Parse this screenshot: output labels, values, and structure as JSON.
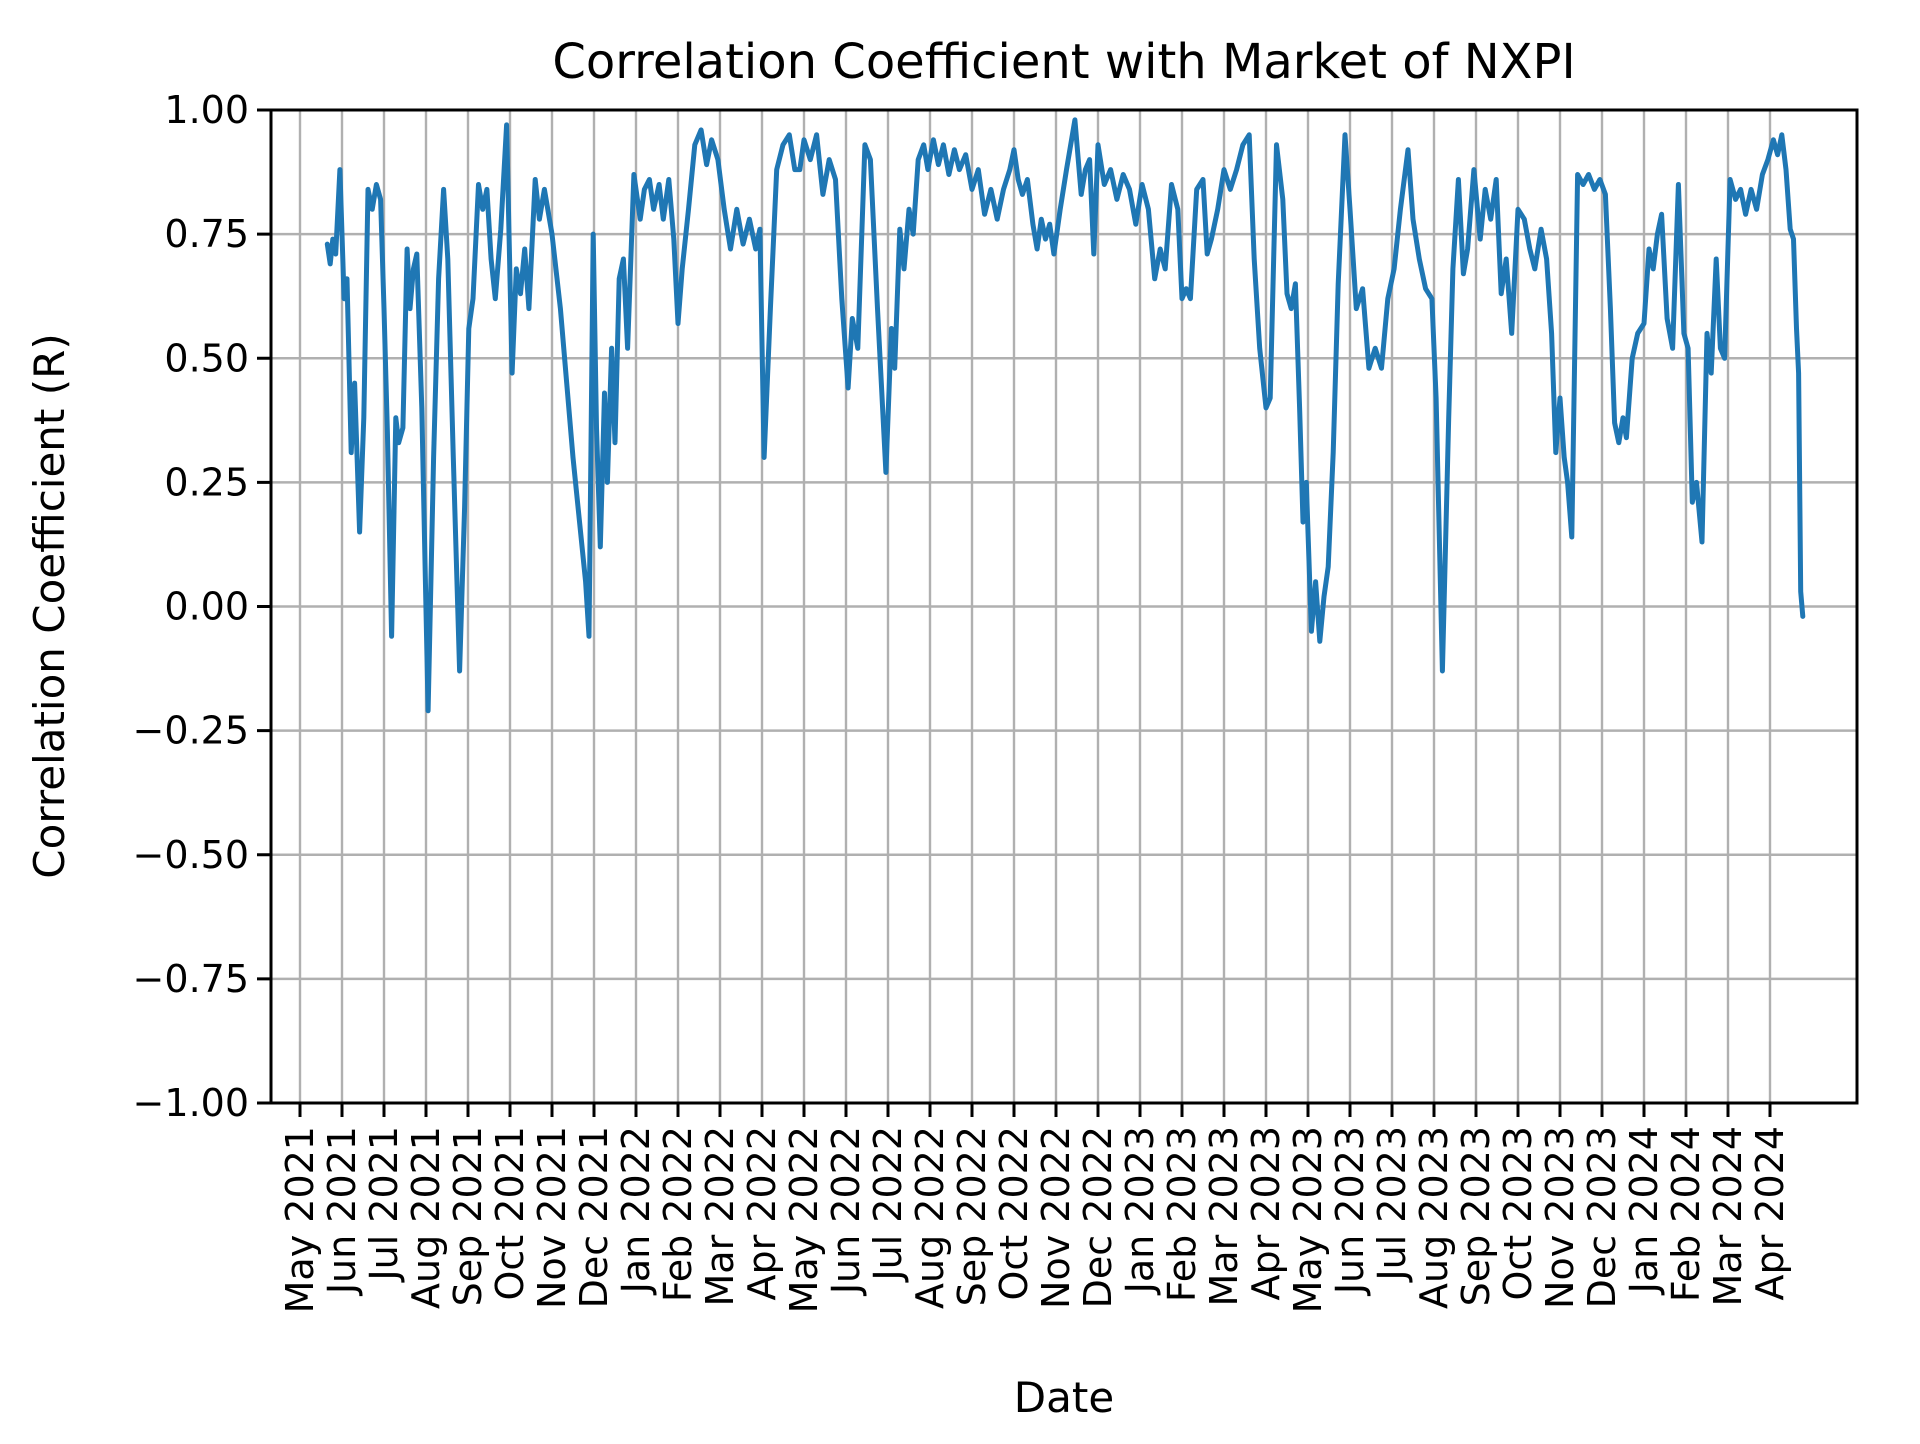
{
  "figure": {
    "title": "Correlation Coefficient with Market of NXPI",
    "xlabel": "Date",
    "ylabel": "Correlation Coefficient (R)"
  },
  "chart_data": {
    "type": "line",
    "title": "Correlation Coefficient with Market of NXPI",
    "xlabel": "Date",
    "ylabel": "Correlation Coefficient (R)",
    "ylim": [
      -1.0,
      1.0
    ],
    "grid": true,
    "legend_position": "none",
    "line_color": "#1f77b4",
    "grid_color": "#b0b0b0",
    "spine_color": "#000000",
    "yticks": {
      "labels": [
        "1.00",
        "0.75",
        "0.50",
        "0.25",
        "0.00",
        "−0.25",
        "−0.50",
        "−0.75",
        "−1.00"
      ],
      "values": [
        1.0,
        0.75,
        0.5,
        0.25,
        0.0,
        -0.25,
        -0.5,
        -0.75,
        -1.0
      ]
    },
    "x_tick_labels": [
      "May 2021",
      "Jun 2021",
      "Jul 2021",
      "Aug 2021",
      "Sep 2021",
      "Oct 2021",
      "Nov 2021",
      "Dec 2021",
      "Jan 2022",
      "Feb 2022",
      "Mar 2022",
      "Apr 2022",
      "May 2022",
      "Jun 2022",
      "Jul 2022",
      "Aug 2022",
      "Sep 2022",
      "Oct 2022",
      "Nov 2022",
      "Dec 2022",
      "Jan 2023",
      "Feb 2023",
      "Mar 2023",
      "Apr 2023",
      "May 2023",
      "Jun 2023",
      "Jul 2023",
      "Aug 2023",
      "Sep 2023",
      "Oct 2023",
      "Nov 2023",
      "Dec 2023",
      "Jan 2024",
      "Feb 2024",
      "Mar 2024",
      "Apr 2024"
    ],
    "x_unit": "months_since_first_tick",
    "series": [
      {
        "name": "correlation",
        "points": [
          [
            0.65,
            0.73
          ],
          [
            0.72,
            0.69
          ],
          [
            0.78,
            0.74
          ],
          [
            0.85,
            0.71
          ],
          [
            0.95,
            0.88
          ],
          [
            1.05,
            0.62
          ],
          [
            1.12,
            0.66
          ],
          [
            1.22,
            0.31
          ],
          [
            1.3,
            0.45
          ],
          [
            1.42,
            0.15
          ],
          [
            1.52,
            0.38
          ],
          [
            1.62,
            0.84
          ],
          [
            1.72,
            0.8
          ],
          [
            1.82,
            0.85
          ],
          [
            1.92,
            0.82
          ],
          [
            2.0,
            0.6
          ],
          [
            2.08,
            0.35
          ],
          [
            2.18,
            -0.06
          ],
          [
            2.28,
            0.38
          ],
          [
            2.35,
            0.33
          ],
          [
            2.45,
            0.36
          ],
          [
            2.55,
            0.72
          ],
          [
            2.62,
            0.6
          ],
          [
            2.7,
            0.68
          ],
          [
            2.78,
            0.71
          ],
          [
            2.9,
            0.4
          ],
          [
            3.05,
            -0.21
          ],
          [
            3.18,
            0.3
          ],
          [
            3.3,
            0.66
          ],
          [
            3.42,
            0.84
          ],
          [
            3.52,
            0.7
          ],
          [
            3.65,
            0.3
          ],
          [
            3.8,
            -0.13
          ],
          [
            3.92,
            0.2
          ],
          [
            4.02,
            0.56
          ],
          [
            4.12,
            0.62
          ],
          [
            4.25,
            0.85
          ],
          [
            4.35,
            0.8
          ],
          [
            4.45,
            0.84
          ],
          [
            4.55,
            0.7
          ],
          [
            4.65,
            0.62
          ],
          [
            4.78,
            0.76
          ],
          [
            4.92,
            0.97
          ],
          [
            5.05,
            0.47
          ],
          [
            5.15,
            0.68
          ],
          [
            5.25,
            0.63
          ],
          [
            5.35,
            0.72
          ],
          [
            5.45,
            0.6
          ],
          [
            5.6,
            0.86
          ],
          [
            5.7,
            0.78
          ],
          [
            5.82,
            0.84
          ],
          [
            6.0,
            0.75
          ],
          [
            6.2,
            0.6
          ],
          [
            6.5,
            0.3
          ],
          [
            6.8,
            0.05
          ],
          [
            6.88,
            -0.06
          ],
          [
            6.98,
            0.75
          ],
          [
            7.06,
            0.36
          ],
          [
            7.15,
            0.12
          ],
          [
            7.25,
            0.43
          ],
          [
            7.32,
            0.25
          ],
          [
            7.42,
            0.52
          ],
          [
            7.5,
            0.33
          ],
          [
            7.6,
            0.66
          ],
          [
            7.7,
            0.7
          ],
          [
            7.8,
            0.52
          ],
          [
            7.95,
            0.87
          ],
          [
            8.1,
            0.78
          ],
          [
            8.2,
            0.84
          ],
          [
            8.32,
            0.86
          ],
          [
            8.42,
            0.8
          ],
          [
            8.55,
            0.85
          ],
          [
            8.65,
            0.78
          ],
          [
            8.78,
            0.86
          ],
          [
            8.9,
            0.74
          ],
          [
            9.0,
            0.57
          ],
          [
            9.1,
            0.68
          ],
          [
            9.25,
            0.8
          ],
          [
            9.4,
            0.93
          ],
          [
            9.55,
            0.96
          ],
          [
            9.68,
            0.89
          ],
          [
            9.8,
            0.94
          ],
          [
            9.95,
            0.9
          ],
          [
            10.1,
            0.8
          ],
          [
            10.25,
            0.72
          ],
          [
            10.4,
            0.8
          ],
          [
            10.55,
            0.73
          ],
          [
            10.7,
            0.78
          ],
          [
            10.85,
            0.72
          ],
          [
            10.95,
            0.76
          ],
          [
            11.05,
            0.3
          ],
          [
            11.2,
            0.6
          ],
          [
            11.35,
            0.88
          ],
          [
            11.5,
            0.93
          ],
          [
            11.65,
            0.95
          ],
          [
            11.78,
            0.88
          ],
          [
            11.9,
            0.88
          ],
          [
            12.0,
            0.94
          ],
          [
            12.15,
            0.9
          ],
          [
            12.3,
            0.95
          ],
          [
            12.45,
            0.83
          ],
          [
            12.6,
            0.9
          ],
          [
            12.75,
            0.86
          ],
          [
            12.9,
            0.62
          ],
          [
            13.05,
            0.44
          ],
          [
            13.15,
            0.58
          ],
          [
            13.28,
            0.52
          ],
          [
            13.45,
            0.93
          ],
          [
            13.58,
            0.9
          ],
          [
            13.75,
            0.6
          ],
          [
            13.95,
            0.27
          ],
          [
            14.08,
            0.56
          ],
          [
            14.16,
            0.48
          ],
          [
            14.28,
            0.76
          ],
          [
            14.38,
            0.68
          ],
          [
            14.5,
            0.8
          ],
          [
            14.6,
            0.75
          ],
          [
            14.72,
            0.9
          ],
          [
            14.85,
            0.93
          ],
          [
            14.95,
            0.88
          ],
          [
            15.08,
            0.94
          ],
          [
            15.2,
            0.89
          ],
          [
            15.32,
            0.93
          ],
          [
            15.45,
            0.87
          ],
          [
            15.58,
            0.92
          ],
          [
            15.7,
            0.88
          ],
          [
            15.85,
            0.91
          ],
          [
            16.0,
            0.84
          ],
          [
            16.15,
            0.88
          ],
          [
            16.3,
            0.79
          ],
          [
            16.45,
            0.84
          ],
          [
            16.6,
            0.78
          ],
          [
            16.75,
            0.84
          ],
          [
            16.9,
            0.88
          ],
          [
            17.0,
            0.92
          ],
          [
            17.1,
            0.86
          ],
          [
            17.2,
            0.83
          ],
          [
            17.32,
            0.86
          ],
          [
            17.45,
            0.77
          ],
          [
            17.55,
            0.72
          ],
          [
            17.65,
            0.78
          ],
          [
            17.75,
            0.74
          ],
          [
            17.85,
            0.77
          ],
          [
            17.95,
            0.71
          ],
          [
            18.1,
            0.8
          ],
          [
            18.25,
            0.88
          ],
          [
            18.45,
            0.98
          ],
          [
            18.6,
            0.83
          ],
          [
            18.7,
            0.88
          ],
          [
            18.8,
            0.9
          ],
          [
            18.9,
            0.71
          ],
          [
            19.0,
            0.93
          ],
          [
            19.15,
            0.85
          ],
          [
            19.3,
            0.88
          ],
          [
            19.45,
            0.82
          ],
          [
            19.6,
            0.87
          ],
          [
            19.75,
            0.84
          ],
          [
            19.9,
            0.77
          ],
          [
            20.05,
            0.85
          ],
          [
            20.2,
            0.8
          ],
          [
            20.35,
            0.66
          ],
          [
            20.48,
            0.72
          ],
          [
            20.6,
            0.68
          ],
          [
            20.75,
            0.85
          ],
          [
            20.9,
            0.8
          ],
          [
            21.0,
            0.62
          ],
          [
            21.1,
            0.64
          ],
          [
            21.2,
            0.62
          ],
          [
            21.35,
            0.84
          ],
          [
            21.5,
            0.86
          ],
          [
            21.6,
            0.71
          ],
          [
            21.7,
            0.74
          ],
          [
            21.85,
            0.8
          ],
          [
            22.0,
            0.88
          ],
          [
            22.15,
            0.84
          ],
          [
            22.3,
            0.88
          ],
          [
            22.45,
            0.93
          ],
          [
            22.6,
            0.95
          ],
          [
            22.72,
            0.7
          ],
          [
            22.85,
            0.52
          ],
          [
            23.0,
            0.4
          ],
          [
            23.1,
            0.42
          ],
          [
            23.25,
            0.93
          ],
          [
            23.4,
            0.82
          ],
          [
            23.5,
            0.63
          ],
          [
            23.6,
            0.6
          ],
          [
            23.7,
            0.65
          ],
          [
            23.8,
            0.4
          ],
          [
            23.88,
            0.17
          ],
          [
            23.96,
            0.25
          ],
          [
            24.08,
            -0.05
          ],
          [
            24.18,
            0.05
          ],
          [
            24.28,
            -0.07
          ],
          [
            24.38,
            0.02
          ],
          [
            24.48,
            0.08
          ],
          [
            24.6,
            0.31
          ],
          [
            24.72,
            0.65
          ],
          [
            24.88,
            0.95
          ],
          [
            25.0,
            0.8
          ],
          [
            25.15,
            0.6
          ],
          [
            25.3,
            0.64
          ],
          [
            25.45,
            0.48
          ],
          [
            25.6,
            0.52
          ],
          [
            25.75,
            0.48
          ],
          [
            25.9,
            0.62
          ],
          [
            26.05,
            0.68
          ],
          [
            26.2,
            0.8
          ],
          [
            26.38,
            0.92
          ],
          [
            26.5,
            0.78
          ],
          [
            26.65,
            0.7
          ],
          [
            26.8,
            0.64
          ],
          [
            26.95,
            0.62
          ],
          [
            27.05,
            0.42
          ],
          [
            27.2,
            -0.13
          ],
          [
            27.35,
            0.38
          ],
          [
            27.45,
            0.68
          ],
          [
            27.58,
            0.86
          ],
          [
            27.7,
            0.67
          ],
          [
            27.8,
            0.72
          ],
          [
            27.95,
            0.88
          ],
          [
            28.1,
            0.74
          ],
          [
            28.22,
            0.84
          ],
          [
            28.35,
            0.78
          ],
          [
            28.48,
            0.86
          ],
          [
            28.6,
            0.63
          ],
          [
            28.72,
            0.7
          ],
          [
            28.85,
            0.55
          ],
          [
            29.0,
            0.8
          ],
          [
            29.15,
            0.78
          ],
          [
            29.28,
            0.72
          ],
          [
            29.4,
            0.68
          ],
          [
            29.55,
            0.76
          ],
          [
            29.68,
            0.7
          ],
          [
            29.8,
            0.55
          ],
          [
            29.9,
            0.31
          ],
          [
            30.0,
            0.42
          ],
          [
            30.1,
            0.3
          ],
          [
            30.18,
            0.25
          ],
          [
            30.28,
            0.14
          ],
          [
            30.42,
            0.87
          ],
          [
            30.55,
            0.85
          ],
          [
            30.68,
            0.87
          ],
          [
            30.82,
            0.84
          ],
          [
            30.95,
            0.86
          ],
          [
            31.08,
            0.83
          ],
          [
            31.2,
            0.6
          ],
          [
            31.3,
            0.37
          ],
          [
            31.4,
            0.33
          ],
          [
            31.5,
            0.38
          ],
          [
            31.58,
            0.34
          ],
          [
            31.72,
            0.5
          ],
          [
            31.85,
            0.55
          ],
          [
            32.0,
            0.57
          ],
          [
            32.12,
            0.72
          ],
          [
            32.22,
            0.68
          ],
          [
            32.32,
            0.75
          ],
          [
            32.42,
            0.79
          ],
          [
            32.55,
            0.58
          ],
          [
            32.68,
            0.52
          ],
          [
            32.82,
            0.85
          ],
          [
            32.95,
            0.55
          ],
          [
            33.05,
            0.52
          ],
          [
            33.15,
            0.21
          ],
          [
            33.25,
            0.25
          ],
          [
            33.38,
            0.13
          ],
          [
            33.5,
            0.55
          ],
          [
            33.6,
            0.47
          ],
          [
            33.72,
            0.7
          ],
          [
            33.82,
            0.52
          ],
          [
            33.92,
            0.5
          ],
          [
            34.05,
            0.86
          ],
          [
            34.18,
            0.82
          ],
          [
            34.3,
            0.84
          ],
          [
            34.42,
            0.79
          ],
          [
            34.55,
            0.84
          ],
          [
            34.68,
            0.8
          ],
          [
            34.82,
            0.87
          ],
          [
            34.95,
            0.9
          ],
          [
            35.08,
            0.94
          ],
          [
            35.18,
            0.91
          ],
          [
            35.28,
            0.95
          ],
          [
            35.38,
            0.88
          ],
          [
            35.48,
            0.76
          ],
          [
            35.56,
            0.74
          ],
          [
            35.63,
            0.56
          ],
          [
            35.68,
            0.47
          ],
          [
            35.73,
            0.03
          ],
          [
            35.78,
            -0.02
          ]
        ]
      }
    ]
  }
}
